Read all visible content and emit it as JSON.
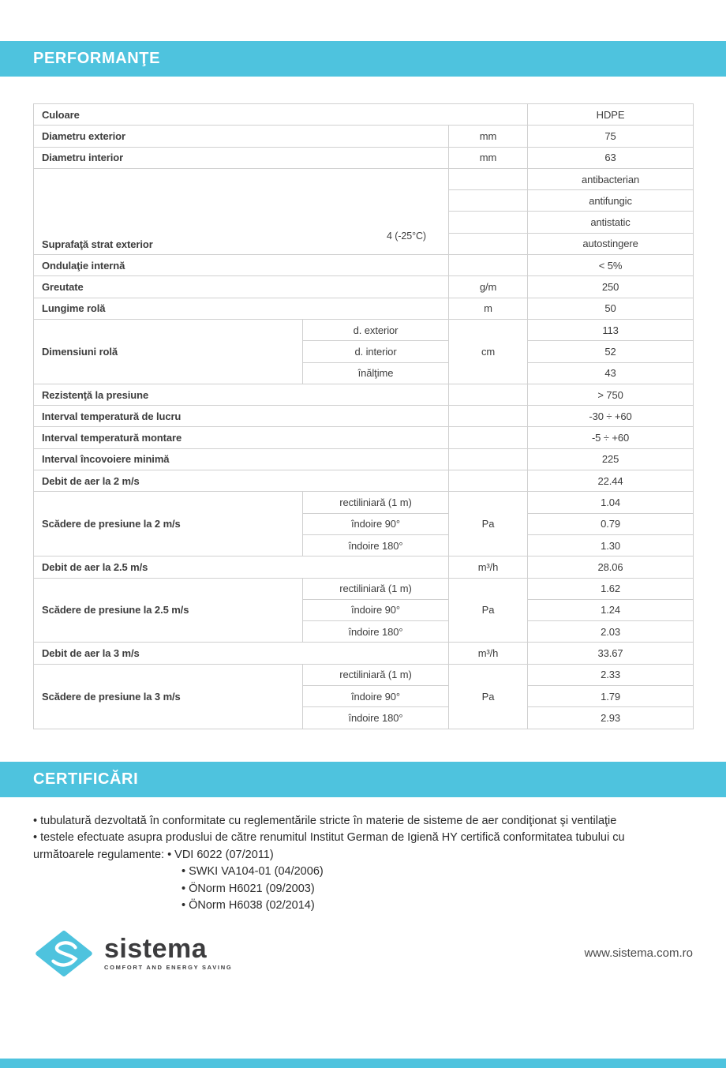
{
  "colors": {
    "accent": "#4EC3DE",
    "table_border": "#D0D0D0"
  },
  "sections": {
    "performante": {
      "title": "PERFORMANŢE"
    },
    "certificari": {
      "title": "CERTIFICĂRI"
    }
  },
  "spec_table": {
    "rows": [
      {
        "label": "Culoare",
        "label_cols": 3,
        "unit": null,
        "unit_merged": false,
        "subs": null,
        "note": null,
        "values": [
          "HDPE"
        ]
      },
      {
        "label": "Diametru exterior",
        "label_cols": 2,
        "unit": "mm",
        "unit_merged": false,
        "subs": null,
        "note": null,
        "values": [
          "75"
        ]
      },
      {
        "label": "Diametru interior",
        "label_cols": 2,
        "unit": "mm",
        "unit_merged": false,
        "subs": null,
        "note": null,
        "values": [
          "63"
        ]
      },
      {
        "label": "Suprafaţă strat exterior",
        "label_cols": 2,
        "unit": "",
        "unit_merged": false,
        "subs": null,
        "note": "4 (-25°C)",
        "values": [
          "antibacterian",
          "antifungic",
          "antistatic",
          "autostingere"
        ]
      },
      {
        "label": "Ondulaţie internă",
        "label_cols": 2,
        "unit": "",
        "unit_merged": false,
        "subs": null,
        "note": null,
        "values": [
          "< 5%"
        ]
      },
      {
        "label": "Greutate",
        "label_cols": 2,
        "unit": "g/m",
        "unit_merged": false,
        "subs": null,
        "note": null,
        "values": [
          "250"
        ]
      },
      {
        "label": "Lungime rolă",
        "label_cols": 2,
        "unit": "m",
        "unit_merged": false,
        "subs": null,
        "note": null,
        "values": [
          "50"
        ]
      },
      {
        "label": "Dimensiuni rolă",
        "label_cols": 1,
        "unit": "cm",
        "unit_merged": true,
        "subs": [
          "d. exterior",
          "d. interior",
          "înălţime"
        ],
        "note": null,
        "values": [
          "113",
          "52",
          "43"
        ]
      },
      {
        "label": "Rezistenţă la presiune",
        "label_cols": 2,
        "unit": "",
        "unit_merged": false,
        "subs": null,
        "note": null,
        "values": [
          "> 750"
        ]
      },
      {
        "label": "Interval temperatură de lucru",
        "label_cols": 2,
        "unit": "",
        "unit_merged": false,
        "subs": null,
        "note": null,
        "values": [
          "-30 ÷ +60"
        ]
      },
      {
        "label": "Interval temperatură montare",
        "label_cols": 2,
        "unit": "",
        "unit_merged": false,
        "subs": null,
        "note": null,
        "values": [
          "-5 ÷ +60"
        ]
      },
      {
        "label": "Interval încovoiere minimă",
        "label_cols": 2,
        "unit": "",
        "unit_merged": false,
        "subs": null,
        "note": null,
        "values": [
          "225"
        ]
      },
      {
        "label": "Debit de aer la 2 m/s",
        "label_cols": 2,
        "unit": "",
        "unit_merged": false,
        "subs": null,
        "note": null,
        "values": [
          "22.44"
        ]
      },
      {
        "label": "Scădere de presiune la 2 m/s",
        "label_cols": 1,
        "unit": "Pa",
        "unit_merged": true,
        "subs": [
          "rectiliniară (1 m)",
          "îndoire 90°",
          "îndoire 180°"
        ],
        "note": null,
        "values": [
          "1.04",
          "0.79",
          "1.30"
        ]
      },
      {
        "label": "Debit de aer la 2.5 m/s",
        "label_cols": 2,
        "unit": "m³/h",
        "unit_merged": false,
        "subs": null,
        "note": null,
        "values": [
          "28.06"
        ]
      },
      {
        "label": "Scădere de presiune la 2.5 m/s",
        "label_cols": 1,
        "unit": "Pa",
        "unit_merged": true,
        "subs": [
          "rectiliniară (1 m)",
          "îndoire 90°",
          "îndoire 180°"
        ],
        "note": null,
        "values": [
          "1.62",
          "1.24",
          "2.03"
        ]
      },
      {
        "label": "Debit de aer la 3 m/s",
        "label_cols": 2,
        "unit": "m³/h",
        "unit_merged": false,
        "subs": null,
        "note": null,
        "values": [
          "33.67"
        ]
      },
      {
        "label": "Scădere de presiune la 3 m/s",
        "label_cols": 1,
        "unit": "Pa",
        "unit_merged": true,
        "subs": [
          "rectiliniară (1 m)",
          "îndoire 90°",
          "îndoire 180°"
        ],
        "note": null,
        "values": [
          "2.33",
          "1.79",
          "2.93"
        ]
      }
    ]
  },
  "certificari_lines": [
    {
      "text": "• tubulatură dezvoltată în conformitate cu reglementările stricte în materie de sisteme de aer condiţionat şi ventilaţie",
      "indent": false
    },
    {
      "text": "• testele efectuate asupra produslui de către renumitul Institut German de Igienă HY certifică conformitatea tubului cu",
      "indent": false
    },
    {
      "text": "următoarele regulamente: • VDI 6022 (07/2011)",
      "indent": false
    },
    {
      "text": "• SWKI VA104-01 (04/2006)",
      "indent": true
    },
    {
      "text": "• ÖNorm H6021 (09/2003)",
      "indent": true
    },
    {
      "text": "• ÖNorm H6038 (02/2014)",
      "indent": true
    }
  ],
  "logo": {
    "name": "sistema",
    "tagline": "COMFORT AND ENERGY SAVING"
  },
  "footer": {
    "website": "www.sistema.com.ro"
  }
}
